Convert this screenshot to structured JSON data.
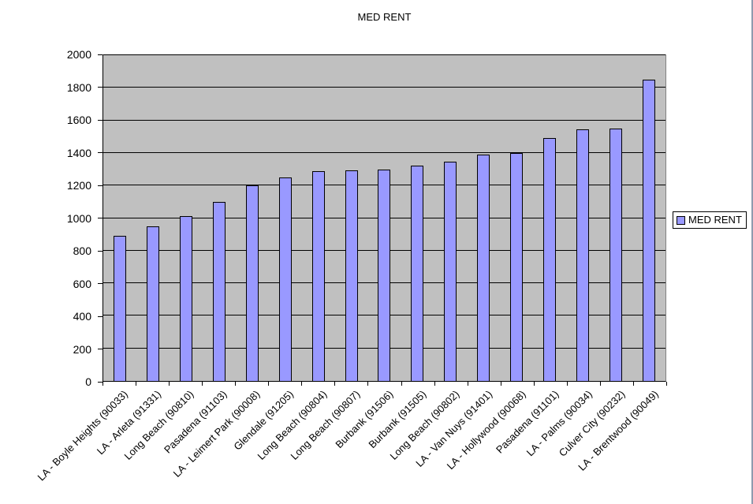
{
  "chart_data": {
    "type": "bar",
    "title": "MED RENT",
    "series_name": "MED RENT",
    "categories": [
      "LA - Boyle Heights (90033)",
      "LA - Arleta (91331)",
      "Long Beach (90810)",
      "Pasadena (91103)",
      "LA - Leimert Park (90008)",
      "Glendale (91205)",
      "Long Beach (90804)",
      "Long Beach (90807)",
      "Burbank (91506)",
      "Burbank (91505)",
      "Long Beach (90802)",
      "LA - Van Nuys (91401)",
      "LA - Hollywood (90068)",
      "Pasadena (91101)",
      "LA - Palms (90034)",
      "Culver City (90232)",
      "LA - Brentwood (90049)"
    ],
    "values": [
      890,
      950,
      1010,
      1100,
      1200,
      1250,
      1290,
      1295,
      1300,
      1320,
      1345,
      1390,
      1400,
      1490,
      1545,
      1550,
      1850
    ],
    "xlabel": "",
    "ylabel": "",
    "ylim": [
      0,
      2000
    ],
    "ytick_interval": 200,
    "ytick_labels": [
      "0",
      "200",
      "400",
      "600",
      "800",
      "1000",
      "1200",
      "1400",
      "1600",
      "1800",
      "2000"
    ],
    "grid": true,
    "legend_position": "right",
    "colors": {
      "bar_fill": "#9999FF",
      "bar_border": "#000000",
      "plot_background": "#C0C0C0",
      "gridline": "#000000",
      "plot_border": "#808080",
      "axis": "#000000",
      "background": "#FFFFFF",
      "text": "#000000",
      "window_edge": "#8E9AAE"
    }
  }
}
